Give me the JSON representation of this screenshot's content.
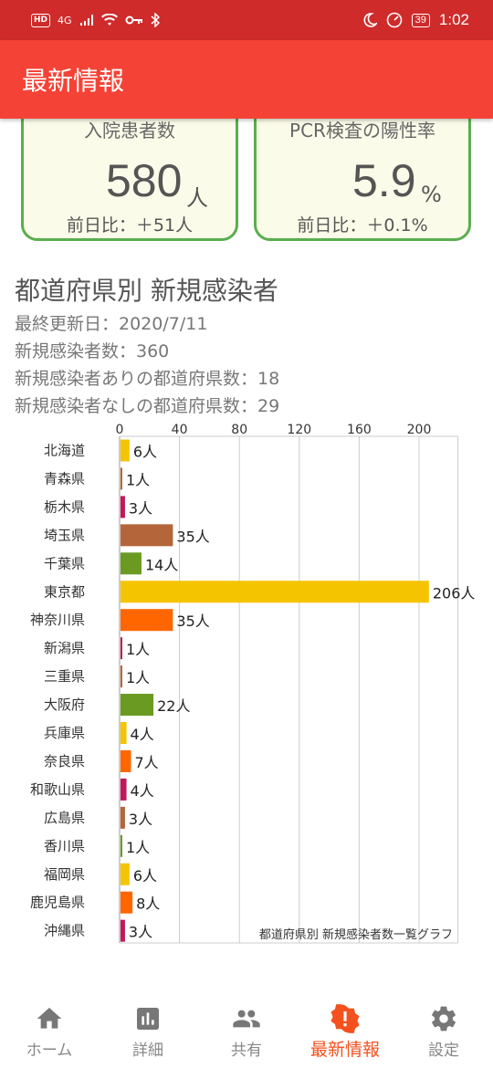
{
  "status_bar": {
    "hd": "HD",
    "network": "4G",
    "battery": "39",
    "time": "1:02"
  },
  "app_bar": {
    "title": "最新情報"
  },
  "cards": {
    "hospitalized": {
      "label": "入院患者数",
      "value": "580",
      "unit": "人",
      "diff": "前日比：＋51人"
    },
    "pcr": {
      "label": "PCR検査の陽性率",
      "value": "5.9",
      "unit": "%",
      "diff": "前日比：＋0.1%"
    }
  },
  "section": {
    "title": "都道府県別 新規感染者",
    "last_updated": "最終更新日：2020/7/11",
    "new_cases": "新規感染者数：360",
    "with_cases": "新規感染者ありの都道府県数：18",
    "without_cases": "新規感染者なしの都道府県数：29"
  },
  "chart_data": {
    "type": "bar",
    "orientation": "horizontal",
    "categories": [
      "北海道",
      "青森県",
      "栃木県",
      "埼玉県",
      "千葉県",
      "東京都",
      "神奈川県",
      "新潟県",
      "三重県",
      "大阪府",
      "兵庫県",
      "奈良県",
      "和歌山県",
      "広島県",
      "香川県",
      "福岡県",
      "鹿児島県",
      "沖縄県"
    ],
    "values": [
      6,
      1,
      3,
      35,
      14,
      206,
      35,
      1,
      1,
      22,
      4,
      7,
      4,
      3,
      1,
      6,
      8,
      3
    ],
    "value_labels": [
      "6人",
      "1人",
      "3人",
      "35人",
      "14人",
      "206人",
      "35人",
      "1人",
      "1人",
      "22人",
      "4人",
      "7人",
      "4人",
      "3人",
      "1人",
      "6人",
      "8人",
      "3人"
    ],
    "colors": [
      "#f5c400",
      "#b5653a",
      "#c2185b",
      "#b5653a",
      "#6b9a22",
      "#f5c400",
      "#ff6600",
      "#c2185b",
      "#b5653a",
      "#6b9a22",
      "#f5c400",
      "#ff6600",
      "#c2185b",
      "#b5653a",
      "#6b9a22",
      "#f5c400",
      "#ff6600",
      "#c2185b"
    ],
    "xlim": [
      0,
      226
    ],
    "xticks": [
      0,
      40,
      80,
      120,
      160,
      200
    ],
    "grid": true,
    "caption": "都道府県別 新規感染者数一覧グラフ"
  },
  "bottom_nav": [
    {
      "label": "ホーム",
      "icon": "home-icon",
      "active": false
    },
    {
      "label": "詳細",
      "icon": "chart-icon",
      "active": false
    },
    {
      "label": "共有",
      "icon": "people-icon",
      "active": false
    },
    {
      "label": "最新情報",
      "icon": "alert-icon",
      "active": true
    },
    {
      "label": "設定",
      "icon": "gear-icon",
      "active": false
    }
  ]
}
